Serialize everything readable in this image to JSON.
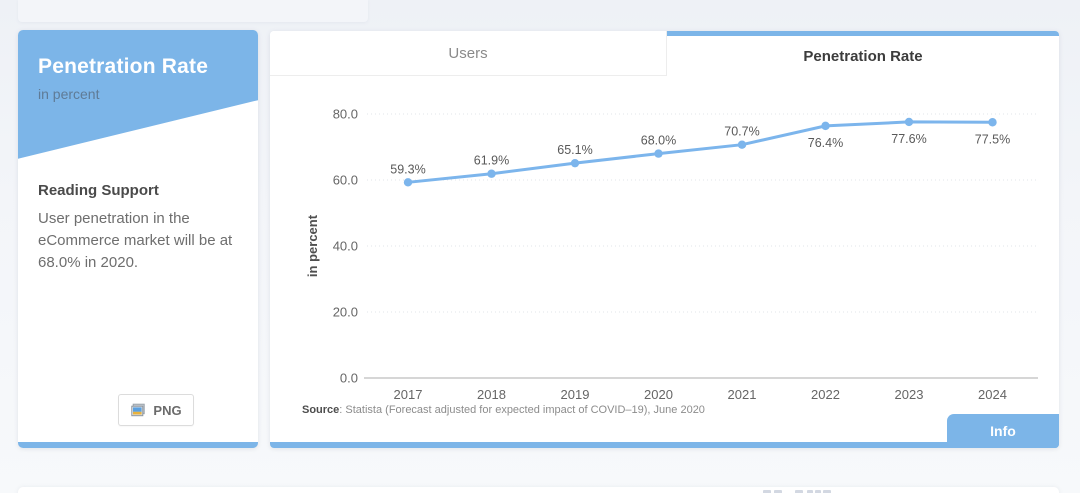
{
  "accent_color": "#7cb5e8",
  "sidebar": {
    "title": "Penetration Rate",
    "subtitle": "in percent",
    "reading_support": {
      "heading": "Reading Support",
      "body": "User penetration in the eCommerce market will be at 68.0% in 2020."
    },
    "png_button_label": "PNG",
    "png_icon": "image-icon"
  },
  "tabs": [
    {
      "label": "Users",
      "active": false
    },
    {
      "label": "Penetration Rate",
      "active": true
    }
  ],
  "chart_data": {
    "type": "line",
    "title": "Penetration Rate",
    "categories": [
      "2017",
      "2018",
      "2019",
      "2020",
      "2021",
      "2022",
      "2023",
      "2024"
    ],
    "values": [
      59.3,
      61.9,
      65.1,
      68.0,
      70.7,
      76.4,
      77.6,
      77.5
    ],
    "data_labels": [
      "59.3%",
      "61.9%",
      "65.1%",
      "68.0%",
      "70.7%",
      "76.4%",
      "77.6%",
      "77.5%"
    ],
    "xlabel": "",
    "ylabel": "in percent",
    "ylim": [
      0,
      80
    ],
    "yticks": [
      0,
      20,
      40,
      60,
      80
    ],
    "ytick_labels": [
      "0.0",
      "20.0",
      "40.0",
      "60.0",
      "80.0"
    ],
    "grid": "horizontal dotted",
    "legend": "none",
    "line_color": "#7cb5ec",
    "marker_color": "#7cb5ec",
    "label_color": "#595959"
  },
  "source": {
    "prefix": "Source",
    "rest": ": Statista (Forecast adjusted for expected impact of COVID–19), June 2020"
  },
  "info_button_label": "Info"
}
